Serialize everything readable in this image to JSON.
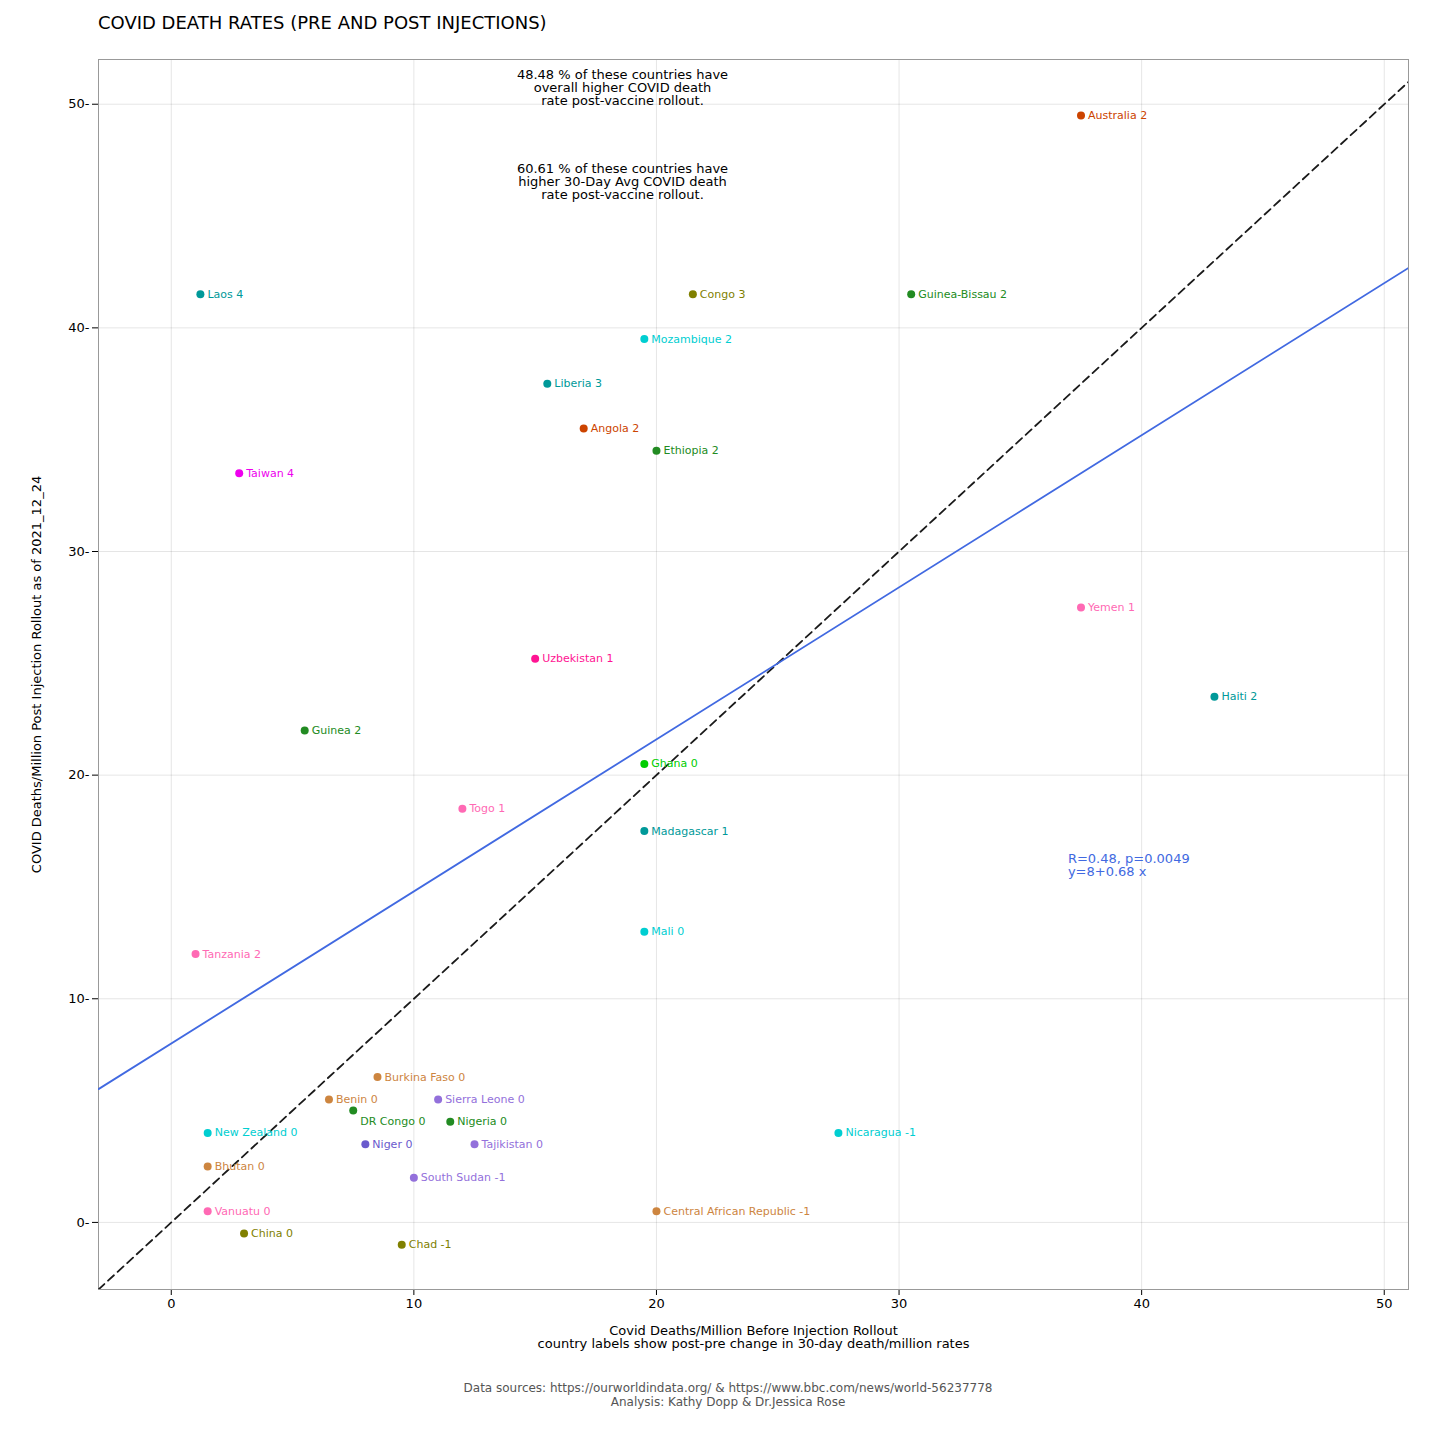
{
  "chart_data": {
    "type": "scatter",
    "title": "COVID DEATH RATES (PRE AND POST INJECTIONS)",
    "xlabel": "Covid Deaths/Million Before Injection Rollout\ncountry labels show post-pre change in 30-day death/million rates",
    "ylabel": "COVID Deaths/Million Post Injection Rollout as of 2021_12_24",
    "xlim": [
      -3,
      51
    ],
    "ylim": [
      -3,
      52
    ],
    "xticks": [
      0,
      10,
      20,
      30,
      40,
      50
    ],
    "yticks": [
      {
        "value": 0,
        "label": "0-"
      },
      {
        "value": 10,
        "label": "10-"
      },
      {
        "value": 20,
        "label": "20-"
      },
      {
        "value": 30,
        "label": "30-"
      },
      {
        "value": 40,
        "label": "40-"
      },
      {
        "value": 50,
        "label": "50-"
      }
    ],
    "grid": true,
    "x": [
      1.2,
      2.8,
      37.5,
      21.5,
      30.5,
      19.5,
      15.5,
      17.0,
      20.0,
      15.0,
      5.5,
      19.5,
      12.0,
      19.5,
      37.5,
      43.0,
      1.0,
      19.5,
      27.5,
      8.5,
      6.5,
      11.0,
      7.5,
      11.5,
      1.5,
      8.0,
      12.5,
      1.5,
      10.0,
      1.5,
      3.0,
      9.5,
      20.0
    ],
    "y": [
      41.5,
      33.5,
      49.5,
      41.5,
      41.5,
      39.5,
      37.5,
      35.5,
      34.5,
      25.2,
      22.0,
      20.5,
      18.5,
      17.5,
      27.5,
      23.5,
      12.0,
      13.0,
      4.0,
      6.5,
      5.5,
      5.5,
      5.0,
      4.5,
      4.0,
      3.5,
      3.5,
      2.5,
      2.0,
      0.5,
      -0.5,
      -1.0,
      0.5
    ],
    "labels": [
      "Laos 4",
      "Taiwan 4",
      "Australia 2",
      "Congo 3",
      "Guinea-Bissau 2",
      "Mozambique 2",
      "Liberia 3",
      "Angola 2",
      "Ethiopia 2",
      "Uzbekistan 1",
      "Guinea 2",
      "Ghana 0",
      "Togo 1",
      "Madagascar 1",
      "Yemen 1",
      "Haiti 2",
      "Tanzania 2",
      "Mali 0",
      "Nicaragua -1",
      "Burkina Faso 0",
      "Benin 0",
      "Sierra Leone 0",
      "DR Congo 0",
      "Nigeria 0",
      "New Zealand 0",
      "Niger 0",
      "Tajikistan 0",
      "Bhutan 0",
      "South Sudan -1",
      "Vanuatu 0",
      "China 0",
      "Chad -1",
      "Central African Republic -1"
    ],
    "colors": [
      "#009999",
      "#EE00EE",
      "#CC4400",
      "#808000",
      "#228B22",
      "#00CED1",
      "#009999",
      "#CC4400",
      "#228B22",
      "#FF1493",
      "#228B22",
      "#00CD00",
      "#FF69B4",
      "#009999",
      "#FF69B4",
      "#009999",
      "#FF69B4",
      "#00CED1",
      "#00CED1",
      "#CD853F",
      "#CD853F",
      "#9370DB",
      "#228B22",
      "#228B22",
      "#00CED1",
      "#6A5ACD",
      "#9370DB",
      "#CD853F",
      "#9370DB",
      "#FF69B4",
      "#808000",
      "#808000",
      "#CD853F"
    ],
    "reference_lines": [
      {
        "slope": 1,
        "intercept": 0,
        "color": "#1A1A1A",
        "line_style": "dashed"
      },
      {
        "slope": 0.68,
        "intercept": 8.0,
        "color": "#4169E1",
        "line_style": "solid"
      }
    ],
    "annotations": [
      {
        "text": "48.48 % of these countries have\noverall higher COVID death\nrate post-vaccine rollout.",
        "color": "black"
      },
      {
        "text": "60.61 % of these countries have\nhigher 30-Day Avg COVID death\nrate post-vaccine rollout.",
        "color": "black"
      },
      {
        "text": "R=0.48, p=0.0049\ny=8+0.68 x",
        "color": "#4169E1"
      }
    ],
    "caption": "Data sources: https://ourworldindata.org/ & https://www.bbc.com/news/world-56237778\nAnalysis: Kathy Dopp & Dr.Jessica Rose"
  }
}
